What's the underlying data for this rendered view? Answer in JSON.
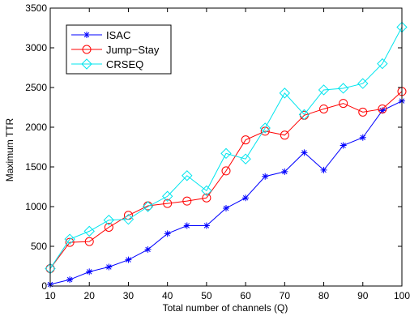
{
  "chart_data": {
    "type": "line",
    "xlabel": "Total number of channels (Q)",
    "ylabel": "Maximum TTR",
    "xlim": [
      10,
      100
    ],
    "ylim": [
      0,
      3500
    ],
    "xticks": [
      10,
      20,
      30,
      40,
      50,
      60,
      70,
      80,
      90,
      100
    ],
    "yticks": [
      0,
      500,
      1000,
      1500,
      2000,
      2500,
      3000,
      3500
    ],
    "grid": false,
    "legend_position": "top-left",
    "x": [
      10,
      15,
      20,
      25,
      30,
      35,
      40,
      45,
      50,
      55,
      60,
      65,
      70,
      75,
      80,
      85,
      90,
      95,
      100
    ],
    "series": [
      {
        "name": "ISAC",
        "color": "#0000ff",
        "marker": "star",
        "values": [
          20,
          80,
          180,
          240,
          330,
          460,
          660,
          760,
          760,
          980,
          1110,
          1380,
          1440,
          1680,
          1460,
          1770,
          1870,
          2210,
          2330
        ]
      },
      {
        "name": "Jump−Stay",
        "color": "#ff0000",
        "marker": "circle",
        "values": [
          220,
          550,
          560,
          740,
          890,
          1010,
          1040,
          1070,
          1110,
          1450,
          1840,
          1950,
          1900,
          2150,
          2230,
          2300,
          2190,
          2230,
          2450
        ]
      },
      {
        "name": "CRSEQ",
        "color": "#00e5ee",
        "marker": "diamond",
        "values": [
          220,
          590,
          690,
          830,
          840,
          1000,
          1130,
          1390,
          1200,
          1670,
          1600,
          1990,
          2430,
          2160,
          2470,
          2490,
          2550,
          2800,
          3260
        ]
      }
    ]
  }
}
